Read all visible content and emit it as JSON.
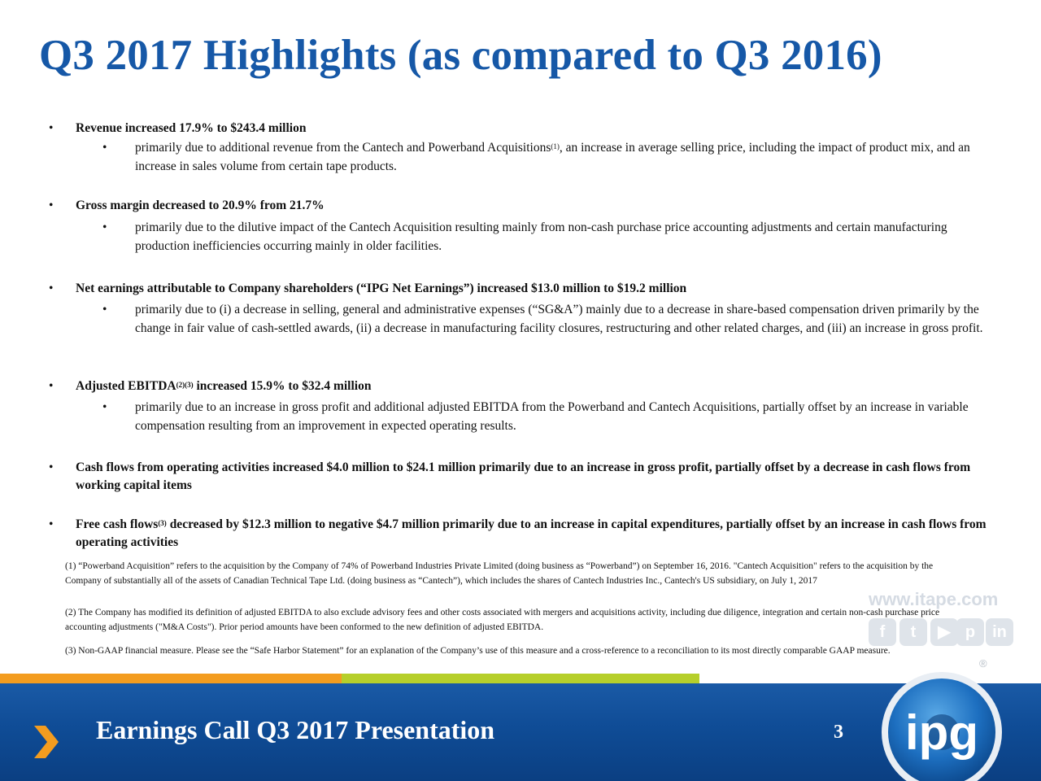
{
  "title": "Q3 2017 Highlights (as compared to Q3 2016)",
  "bullets": [
    {
      "heading": "Revenue increased 17.9% to $243.4 million",
      "detail_pre": "primarily due to additional revenue from the Cantech and Powerband Acquisitions",
      "detail_sup": "(1)",
      "detail_post": ", an increase in average selling price, including the impact of product mix, and an increase in sales volume from certain tape products."
    },
    {
      "heading": "Gross margin decreased to 20.9% from 21.7%",
      "detail": "primarily due to the dilutive impact of the Cantech Acquisition resulting mainly from non-cash purchase price accounting adjustments and certain manufacturing production inefficiencies occurring mainly in older facilities."
    },
    {
      "heading": "Net earnings attributable to Company shareholders (“IPG Net Earnings”) increased $13.0 million to $19.2 million",
      "detail": "primarily due to (i) a decrease in selling, general and administrative expenses (“SG&A”) mainly due to a decrease in share-based compensation driven primarily by the change in fair value of cash-settled awards, (ii) a decrease in manufacturing facility closures, restructuring and other related charges, and (iii) an increase in gross profit."
    },
    {
      "heading_pre": "Adjusted EBITDA",
      "heading_sup": "(2)(3)",
      "heading_post": " increased 15.9% to $32.4 million",
      "detail": "primarily due to an increase in gross profit and additional adjusted EBITDA from the Powerband and Cantech Acquisitions, partially offset by an increase in variable compensation resulting from an improvement in expected operating results."
    },
    {
      "heading": "Cash flows from operating activities increased $4.0 million to $24.1 million primarily due to an increase in gross profit, partially offset by a decrease in cash flows from working capital items"
    },
    {
      "heading_pre": "Free cash flows",
      "heading_sup": "(3)",
      "heading_post": " decreased by $12.3 million to negative $4.7 million primarily due to an increase in capital expenditures, partially offset by an increase in cash flows from operating activities"
    }
  ],
  "footnotes": [
    "(1) “Powerband Acquisition” refers to the acquisition by the Company of 74% of Powerband Industries Private Limited (doing business as “Powerband”) on September 16, 2016.  \"Cantech Acquisition\" refers to the acquisition by the Company of substantially all of the assets of Canadian Technical Tape Ltd. (doing business as “Cantech”), which includes the shares of Cantech Industries Inc., Cantech's US subsidiary, on July 1, 2017",
    "(2) The Company has modified its definition of adjusted EBITDA to also exclude advisory fees and other costs associated with mergers and acquisitions activity, including due diligence, integration and certain non-cash purchase price accounting adjustments (\"M&A Costs\").  Prior period amounts have been conformed to the new definition of adjusted EBITDA.",
    "(3) Non-GAAP financial measure.  Please see the “Safe Harbor Statement” for an explanation of the Company’s use of this measure and a cross-reference to a reconciliation to its most directly comparable GAAP measure."
  ],
  "watermark": {
    "url": "www.itape.com",
    "social_icons": [
      "facebook-icon",
      "twitter-icon",
      "youtube-icon",
      "pinterest-icon",
      "linkedin-icon"
    ],
    "registered": "®"
  },
  "footer": {
    "title": "Earnings Call Q3 2017 Presentation",
    "page_number": "3",
    "logo_text": "ipg"
  },
  "colors": {
    "title": "#1658a7",
    "footer_bg": "#0f4c96",
    "stripe_orange": "#f39c1f",
    "stripe_green": "#b6cf2b",
    "chevron": "#f39c1f"
  }
}
